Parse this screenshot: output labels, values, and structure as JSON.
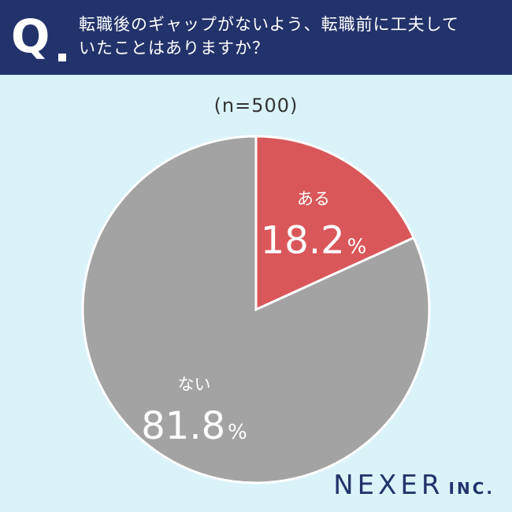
{
  "header": {
    "badge_letter": "Q",
    "question_line1": "転職後のギャップがないよう、転職前に工夫して",
    "question_line2": "いたことはありますか？"
  },
  "sample_label": "(n=500)",
  "brand": {
    "main": "NEXER",
    "sub": "INC."
  },
  "colors": {
    "header_bg": "#22336b",
    "page_bg": "#d9f3f9",
    "slice_yes": "#d9575a",
    "slice_no": "#a3a3a3",
    "label_text": "#ffffff",
    "brand": "#22336b"
  },
  "chart_data": {
    "type": "pie",
    "unit": "%",
    "slices": [
      {
        "label": "ある",
        "value": 18.2,
        "display": "18.2",
        "color": "#d9575a"
      },
      {
        "label": "ない",
        "value": 81.8,
        "display": "81.8",
        "color": "#a3a3a3"
      }
    ]
  }
}
